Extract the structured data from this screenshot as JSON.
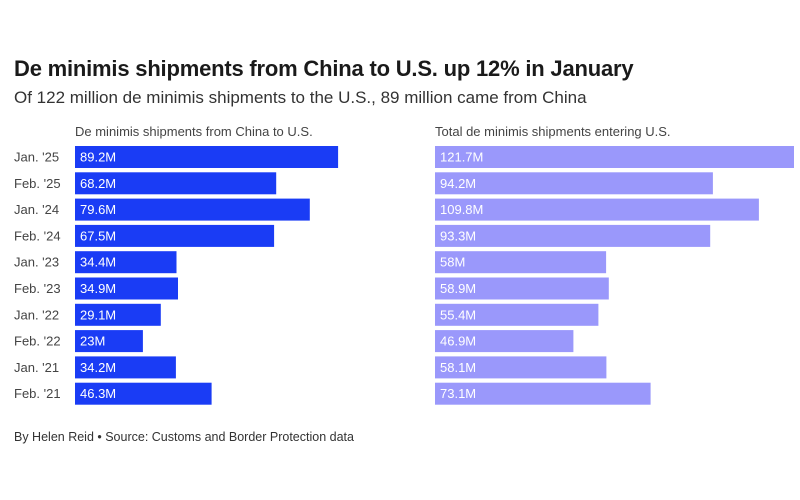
{
  "title": "De minimis shipments from China to U.S. up 12% in January",
  "subtitle": "Of 122 million de minimis shipments to the U.S., 89 million came from China",
  "credit": "By Helen Reid • Source: Customs and Border Protection data",
  "chart_data": {
    "type": "bar",
    "orientation": "horizontal",
    "categories": [
      "Jan. '25",
      "Feb. '25",
      "Jan. '24",
      "Feb. '24",
      "Jan. '23",
      "Feb. '23",
      "Jan. '22",
      "Feb. '22",
      "Jan. '21",
      "Feb. '21"
    ],
    "series": [
      {
        "name": "De minimis shipments from China to U.S.",
        "color": "#1a3cf5",
        "values": [
          89.2,
          68.2,
          79.6,
          67.5,
          34.4,
          34.9,
          29.1,
          23,
          34.2,
          46.3
        ],
        "labels": [
          "89.2M",
          "68.2M",
          "79.6M",
          "67.5M",
          "34.4M",
          "34.9M",
          "29.1M",
          "23M",
          "34.2M",
          "46.3M"
        ]
      },
      {
        "name": "Total de minimis shipments entering U.S.",
        "color": "#9a98fb",
        "values": [
          121.7,
          94.2,
          109.8,
          93.3,
          58,
          58.9,
          55.4,
          46.9,
          58.1,
          73.1
        ],
        "labels": [
          "121.7M",
          "94.2M",
          "109.8M",
          "93.3M",
          "58M",
          "58.9M",
          "55.4M",
          "46.9M",
          "58.1M",
          "73.1M"
        ]
      }
    ],
    "unit": "M",
    "grid": false,
    "legend": "none"
  }
}
